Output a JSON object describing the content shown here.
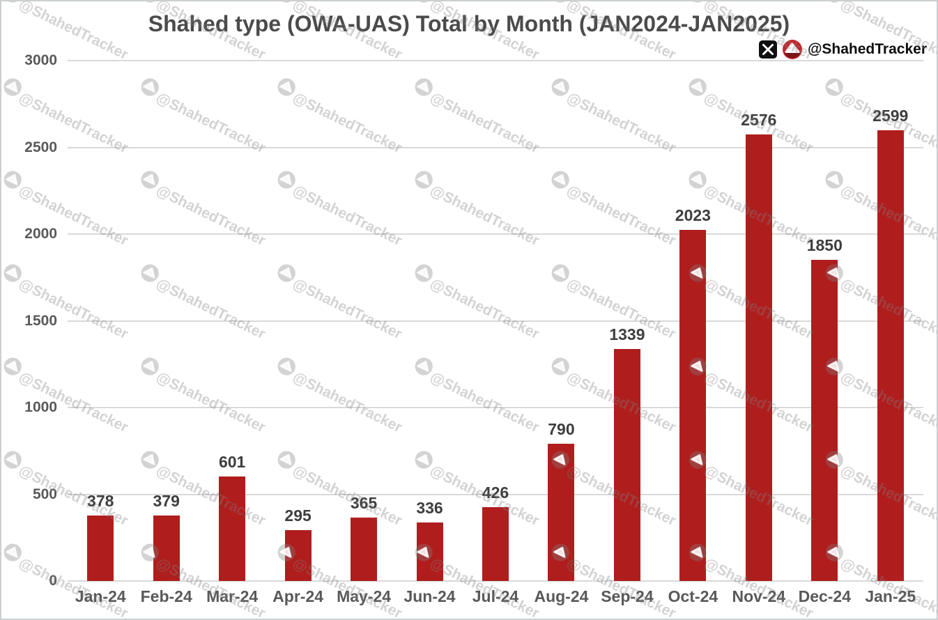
{
  "header": {
    "title": "Shahed type (OWA-UAS) Total by Month (JAN2024-JAN2025)",
    "brand_handle": "@ShahedTracker"
  },
  "icons": {
    "x_logo": "x-social-logo",
    "brand_logo": "shahed-drone-circle-logo",
    "watermark_logo": "shahed-drone-circle-logo-gray"
  },
  "colors": {
    "bar": "#B01D1D",
    "grid": "#D9D9D9",
    "title_text": "#4B4B4B",
    "axis_text": "#595959",
    "data_label_text": "#3E3E3E",
    "handle_text": "#0E0E0E",
    "logo_red": "#C1272D",
    "logo_dark_red": "#7A1518",
    "watermark": "rgba(130,130,130,0.35)"
  },
  "watermark": {
    "text": "@ShahedTracker"
  },
  "chart_data": {
    "type": "bar",
    "title": "Shahed type (OWA-UAS) Total by Month (JAN2024-JAN2025)",
    "categories": [
      "Jan-24",
      "Feb-24",
      "Mar-24",
      "Apr-24",
      "May-24",
      "Jun-24",
      "Jul-24",
      "Aug-24",
      "Sep-24",
      "Oct-24",
      "Nov-24",
      "Dec-24",
      "Jan-25"
    ],
    "values": [
      378,
      379,
      601,
      295,
      365,
      336,
      426,
      790,
      1339,
      2023,
      2576,
      1850,
      2599
    ],
    "xlabel": "",
    "ylabel": "",
    "ylim": [
      0,
      3000
    ],
    "yticks": [
      0,
      500,
      1000,
      1500,
      2000,
      2500,
      3000
    ],
    "grid": true,
    "data_labels": true,
    "legend": "none"
  }
}
